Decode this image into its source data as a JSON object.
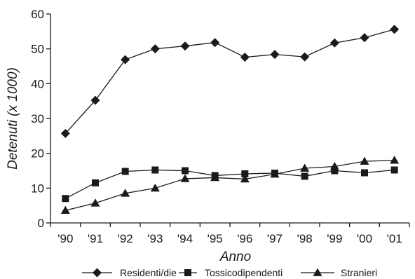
{
  "chart_data": {
    "type": "line",
    "title": "",
    "xlabel": "Anno",
    "ylabel": "Detenuti (x 1000)",
    "categories": [
      "'90",
      "'91",
      "'92",
      "'93",
      "'94",
      "'95",
      "'96",
      "'97",
      "'98",
      "'99",
      "'00",
      "'01"
    ],
    "ylim": [
      0,
      60
    ],
    "yticks": [
      "0",
      "10",
      "20",
      "30",
      "40",
      "50",
      "60"
    ],
    "grid": false,
    "legend_position": "bottom",
    "series": [
      {
        "name": "Residenti/die",
        "marker": "diamond",
        "values": [
          25.7,
          35.2,
          46.9,
          50.0,
          50.8,
          51.8,
          47.6,
          48.4,
          47.7,
          51.7,
          53.2,
          55.6
        ]
      },
      {
        "name": "Tossicodipendenti",
        "marker": "square",
        "values": [
          7.0,
          11.5,
          14.8,
          15.2,
          15.0,
          13.6,
          14.1,
          14.3,
          13.4,
          15.0,
          14.4,
          15.2
        ]
      },
      {
        "name": "Stranieri",
        "marker": "triangle",
        "values": [
          3.6,
          5.7,
          8.5,
          10.0,
          12.7,
          13.0,
          12.6,
          14.0,
          15.7,
          16.2,
          17.7,
          18.0
        ]
      }
    ]
  }
}
